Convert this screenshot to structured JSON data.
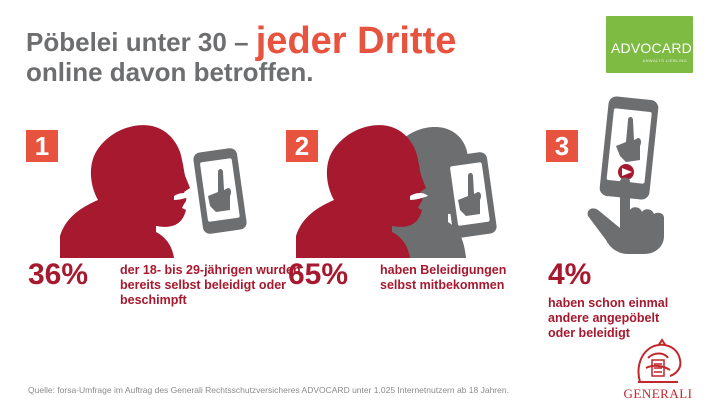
{
  "title": {
    "line1_prefix": "Pöbelei unter 30 – ",
    "line1_accent": "jeder Dritte",
    "line2": "online davon betroffen."
  },
  "logo_advocard": {
    "name": "ADVOCARD",
    "sub": "ANWALTS LIEBLING"
  },
  "panels": [
    {
      "number": "1",
      "percent": "36%",
      "text": "der 18- bis 29-jährigen wurden bereits selbst beleidigt oder beschimpft"
    },
    {
      "number": "2",
      "percent": "65%",
      "text": "haben Beleidigungen selbst mitbekommen"
    },
    {
      "number": "3",
      "percent": "4%",
      "text": "haben schon einmal andere angepöbelt oder beleidigt"
    }
  ],
  "source": "Quelle: forsa-Umfrage im Auftrag des Generali Rechtsschutzversicheres ADVOCARD unter 1.025 Internetnutzern ab 18 Jahren.",
  "logo_generali": {
    "name": "GENERALI"
  },
  "colors": {
    "accent": "#e8533f",
    "dark_red": "#a6192e",
    "grey": "#6d6e70",
    "advocard_green": "#7dbb42"
  },
  "icons": [
    "head-silhouette-icon",
    "smartphone-icon",
    "middle-finger-icon",
    "finger-tap-icon",
    "generali-lion-icon"
  ]
}
